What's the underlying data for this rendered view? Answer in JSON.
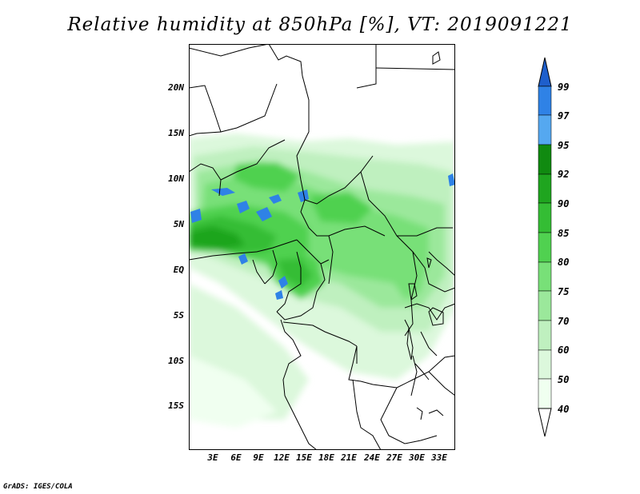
{
  "title": "Relative humidity at 850hPa [%], VT: 2019091221",
  "credit": "GrADS: IGES/COLA",
  "lat_labels": [
    "20N",
    "15N",
    "10N",
    "5N",
    "EQ",
    "5S",
    "10S",
    "15S"
  ],
  "lon_labels": [
    "3E",
    "6E",
    "9E",
    "12E",
    "15E",
    "18E",
    "21E",
    "24E",
    "27E",
    "30E",
    "33E"
  ],
  "colorbar": {
    "levels": [
      "99",
      "97",
      "95",
      "92",
      "90",
      "85",
      "80",
      "75",
      "70",
      "60",
      "50",
      "40"
    ],
    "colors": [
      "#1e5fcc",
      "#2f82e6",
      "#55a8f0",
      "#108a10",
      "#1fa51f",
      "#34bd34",
      "#50d150",
      "#78e078",
      "#9be89b",
      "#bff0bf",
      "#dcf8dc",
      "#f0fff0"
    ]
  },
  "palette": {
    "land": "#ffffff",
    "border": "#000000"
  }
}
